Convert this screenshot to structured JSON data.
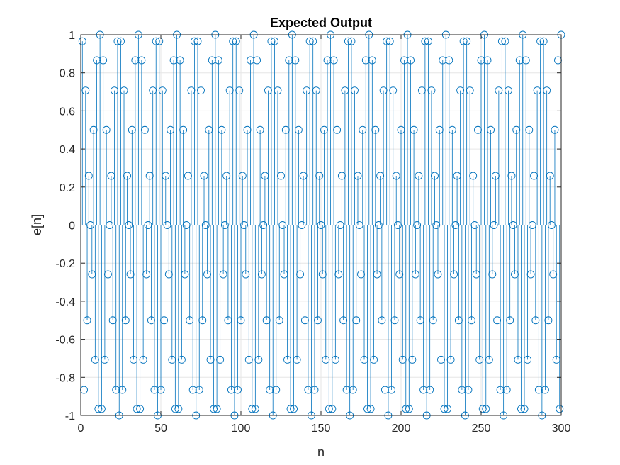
{
  "chart_data": {
    "type": "stem",
    "title": "Expected Output",
    "xlabel": "n",
    "ylabel": "e[n]",
    "xlim": [
      0,
      300
    ],
    "ylim": [
      -1,
      1
    ],
    "xticks": [
      "0",
      "50",
      "100",
      "150",
      "200",
      "250",
      "300"
    ],
    "yticks": [
      "-1",
      "-0.8",
      "-0.6",
      "-0.4",
      "-0.2",
      "0",
      "0.2",
      "0.4",
      "0.6",
      "0.8",
      "1"
    ],
    "grid": true,
    "series": [
      {
        "x_start": 1,
        "x_end": 300,
        "formula": "cos(pi*n/12) * (-1)^(n+1)",
        "color": "#0072BD"
      }
    ]
  }
}
